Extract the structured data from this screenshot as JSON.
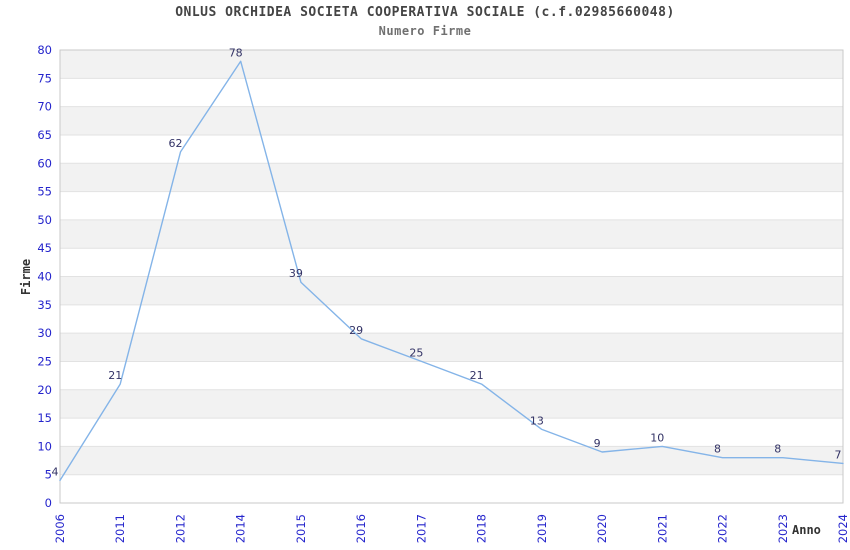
{
  "chart_data": {
    "type": "line",
    "title": "ONLUS ORCHIDEA SOCIETA COOPERATIVA SOCIALE (c.f.02985660048)",
    "subtitle": "Numero Firme",
    "xlabel": "Anno",
    "ylabel": "Firme",
    "categories": [
      "2006",
      "2011",
      "2012",
      "2014",
      "2015",
      "2016",
      "2017",
      "2018",
      "2019",
      "2020",
      "2021",
      "2022",
      "2023",
      "2024"
    ],
    "values": [
      4,
      21,
      62,
      78,
      39,
      29,
      25,
      21,
      13,
      9,
      10,
      8,
      8,
      7
    ],
    "ylim": [
      0,
      80
    ],
    "ytick_step": 5,
    "grid": true,
    "banded_background": true,
    "legend_position": "none",
    "colors": {
      "line": "#84b4e8",
      "tick_label": "#2525cc",
      "data_label": "#333366",
      "band": "#f2f2f2",
      "gridline": "#e2e2e2",
      "plot_border": "#c9c9c9",
      "title": "#444444",
      "subtitle": "#707070",
      "axis_title": "#333333"
    }
  }
}
